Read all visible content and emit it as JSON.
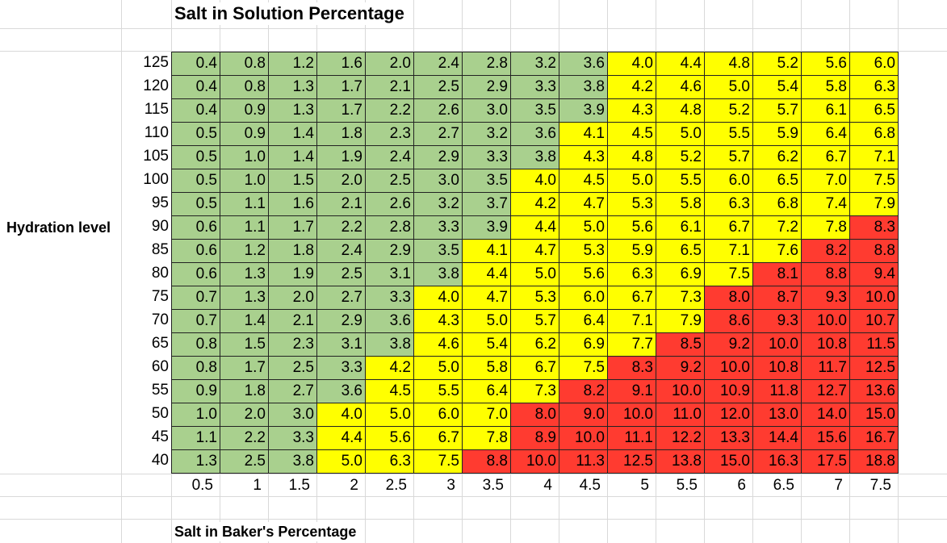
{
  "sheet": {
    "title": "Salt in Solution Percentage",
    "x_axis_title": "Salt in Baker's Percentage",
    "y_axis_title": "Hydration level"
  },
  "colors": {
    "green": "#a9d08e",
    "yellow": "#ffff00",
    "red": "#ff3b30"
  },
  "table": {
    "row_headers": [
      "125",
      "120",
      "115",
      "110",
      "105",
      "100",
      "95",
      "90",
      "85",
      "80",
      "75",
      "70",
      "65",
      "60",
      "55",
      "50",
      "45",
      "40"
    ],
    "column_footers": [
      "0.5",
      "1",
      "1.5",
      "2",
      "2.5",
      "3",
      "3.5",
      "4",
      "4.5",
      "5",
      "5.5",
      "6",
      "6.5",
      "7",
      "7.5"
    ],
    "cells": [
      [
        "0.4",
        "0.8",
        "1.2",
        "1.6",
        "2.0",
        "2.4",
        "2.8",
        "3.2",
        "3.6",
        "4.0",
        "4.4",
        "4.8",
        "5.2",
        "5.6",
        "6.0"
      ],
      [
        "0.4",
        "0.8",
        "1.3",
        "1.7",
        "2.1",
        "2.5",
        "2.9",
        "3.3",
        "3.8",
        "4.2",
        "4.6",
        "5.0",
        "5.4",
        "5.8",
        "6.3"
      ],
      [
        "0.4",
        "0.9",
        "1.3",
        "1.7",
        "2.2",
        "2.6",
        "3.0",
        "3.5",
        "3.9",
        "4.3",
        "4.8",
        "5.2",
        "5.7",
        "6.1",
        "6.5"
      ],
      [
        "0.5",
        "0.9",
        "1.4",
        "1.8",
        "2.3",
        "2.7",
        "3.2",
        "3.6",
        "4.1",
        "4.5",
        "5.0",
        "5.5",
        "5.9",
        "6.4",
        "6.8"
      ],
      [
        "0.5",
        "1.0",
        "1.4",
        "1.9",
        "2.4",
        "2.9",
        "3.3",
        "3.8",
        "4.3",
        "4.8",
        "5.2",
        "5.7",
        "6.2",
        "6.7",
        "7.1"
      ],
      [
        "0.5",
        "1.0",
        "1.5",
        "2.0",
        "2.5",
        "3.0",
        "3.5",
        "4.0",
        "4.5",
        "5.0",
        "5.5",
        "6.0",
        "6.5",
        "7.0",
        "7.5"
      ],
      [
        "0.5",
        "1.1",
        "1.6",
        "2.1",
        "2.6",
        "3.2",
        "3.7",
        "4.2",
        "4.7",
        "5.3",
        "5.8",
        "6.3",
        "6.8",
        "7.4",
        "7.9"
      ],
      [
        "0.6",
        "1.1",
        "1.7",
        "2.2",
        "2.8",
        "3.3",
        "3.9",
        "4.4",
        "5.0",
        "5.6",
        "6.1",
        "6.7",
        "7.2",
        "7.8",
        "8.3"
      ],
      [
        "0.6",
        "1.2",
        "1.8",
        "2.4",
        "2.9",
        "3.5",
        "4.1",
        "4.7",
        "5.3",
        "5.9",
        "6.5",
        "7.1",
        "7.6",
        "8.2",
        "8.8"
      ],
      [
        "0.6",
        "1.3",
        "1.9",
        "2.5",
        "3.1",
        "3.8",
        "4.4",
        "5.0",
        "5.6",
        "6.3",
        "6.9",
        "7.5",
        "8.1",
        "8.8",
        "9.4"
      ],
      [
        "0.7",
        "1.3",
        "2.0",
        "2.7",
        "3.3",
        "4.0",
        "4.7",
        "5.3",
        "6.0",
        "6.7",
        "7.3",
        "8.0",
        "8.7",
        "9.3",
        "10.0"
      ],
      [
        "0.7",
        "1.4",
        "2.1",
        "2.9",
        "3.6",
        "4.3",
        "5.0",
        "5.7",
        "6.4",
        "7.1",
        "7.9",
        "8.6",
        "9.3",
        "10.0",
        "10.7"
      ],
      [
        "0.8",
        "1.5",
        "2.3",
        "3.1",
        "3.8",
        "4.6",
        "5.4",
        "6.2",
        "6.9",
        "7.7",
        "8.5",
        "9.2",
        "10.0",
        "10.8",
        "11.5"
      ],
      [
        "0.8",
        "1.7",
        "2.5",
        "3.3",
        "4.2",
        "5.0",
        "5.8",
        "6.7",
        "7.5",
        "8.3",
        "9.2",
        "10.0",
        "10.8",
        "11.7",
        "12.5"
      ],
      [
        "0.9",
        "1.8",
        "2.7",
        "3.6",
        "4.5",
        "5.5",
        "6.4",
        "7.3",
        "8.2",
        "9.1",
        "10.0",
        "10.9",
        "11.8",
        "12.7",
        "13.6"
      ],
      [
        "1.0",
        "2.0",
        "3.0",
        "4.0",
        "5.0",
        "6.0",
        "7.0",
        "8.0",
        "9.0",
        "10.0",
        "11.0",
        "12.0",
        "13.0",
        "14.0",
        "15.0"
      ],
      [
        "1.1",
        "2.2",
        "3.3",
        "4.4",
        "5.6",
        "6.7",
        "7.8",
        "8.9",
        "10.0",
        "11.1",
        "12.2",
        "13.3",
        "14.4",
        "15.6",
        "16.7"
      ],
      [
        "1.3",
        "2.5",
        "3.8",
        "5.0",
        "6.3",
        "7.5",
        "8.8",
        "10.0",
        "11.3",
        "12.5",
        "13.8",
        "15.0",
        "16.3",
        "17.5",
        "18.8"
      ]
    ],
    "zones": [
      [
        "g",
        "g",
        "g",
        "g",
        "g",
        "g",
        "g",
        "g",
        "g",
        "y",
        "y",
        "y",
        "y",
        "y",
        "y"
      ],
      [
        "g",
        "g",
        "g",
        "g",
        "g",
        "g",
        "g",
        "g",
        "g",
        "y",
        "y",
        "y",
        "y",
        "y",
        "y"
      ],
      [
        "g",
        "g",
        "g",
        "g",
        "g",
        "g",
        "g",
        "g",
        "g",
        "y",
        "y",
        "y",
        "y",
        "y",
        "y"
      ],
      [
        "g",
        "g",
        "g",
        "g",
        "g",
        "g",
        "g",
        "g",
        "y",
        "y",
        "y",
        "y",
        "y",
        "y",
        "y"
      ],
      [
        "g",
        "g",
        "g",
        "g",
        "g",
        "g",
        "g",
        "g",
        "y",
        "y",
        "y",
        "y",
        "y",
        "y",
        "y"
      ],
      [
        "g",
        "g",
        "g",
        "g",
        "g",
        "g",
        "g",
        "y",
        "y",
        "y",
        "y",
        "y",
        "y",
        "y",
        "y"
      ],
      [
        "g",
        "g",
        "g",
        "g",
        "g",
        "g",
        "g",
        "y",
        "y",
        "y",
        "y",
        "y",
        "y",
        "y",
        "y"
      ],
      [
        "g",
        "g",
        "g",
        "g",
        "g",
        "g",
        "g",
        "y",
        "y",
        "y",
        "y",
        "y",
        "y",
        "y",
        "r"
      ],
      [
        "g",
        "g",
        "g",
        "g",
        "g",
        "g",
        "y",
        "y",
        "y",
        "y",
        "y",
        "y",
        "y",
        "r",
        "r"
      ],
      [
        "g",
        "g",
        "g",
        "g",
        "g",
        "g",
        "y",
        "y",
        "y",
        "y",
        "y",
        "y",
        "r",
        "r",
        "r"
      ],
      [
        "g",
        "g",
        "g",
        "g",
        "g",
        "y",
        "y",
        "y",
        "y",
        "y",
        "y",
        "r",
        "r",
        "r",
        "r"
      ],
      [
        "g",
        "g",
        "g",
        "g",
        "g",
        "y",
        "y",
        "y",
        "y",
        "y",
        "y",
        "r",
        "r",
        "r",
        "r"
      ],
      [
        "g",
        "g",
        "g",
        "g",
        "g",
        "y",
        "y",
        "y",
        "y",
        "y",
        "r",
        "r",
        "r",
        "r",
        "r"
      ],
      [
        "g",
        "g",
        "g",
        "g",
        "y",
        "y",
        "y",
        "y",
        "y",
        "r",
        "r",
        "r",
        "r",
        "r",
        "r"
      ],
      [
        "g",
        "g",
        "g",
        "g",
        "y",
        "y",
        "y",
        "y",
        "r",
        "r",
        "r",
        "r",
        "r",
        "r",
        "r"
      ],
      [
        "g",
        "g",
        "g",
        "y",
        "y",
        "y",
        "y",
        "r",
        "r",
        "r",
        "r",
        "r",
        "r",
        "r",
        "r"
      ],
      [
        "g",
        "g",
        "g",
        "y",
        "y",
        "y",
        "y",
        "r",
        "r",
        "r",
        "r",
        "r",
        "r",
        "r",
        "r"
      ],
      [
        "g",
        "g",
        "g",
        "y",
        "y",
        "y",
        "r",
        "r",
        "r",
        "r",
        "r",
        "r",
        "r",
        "r",
        "r"
      ]
    ]
  }
}
